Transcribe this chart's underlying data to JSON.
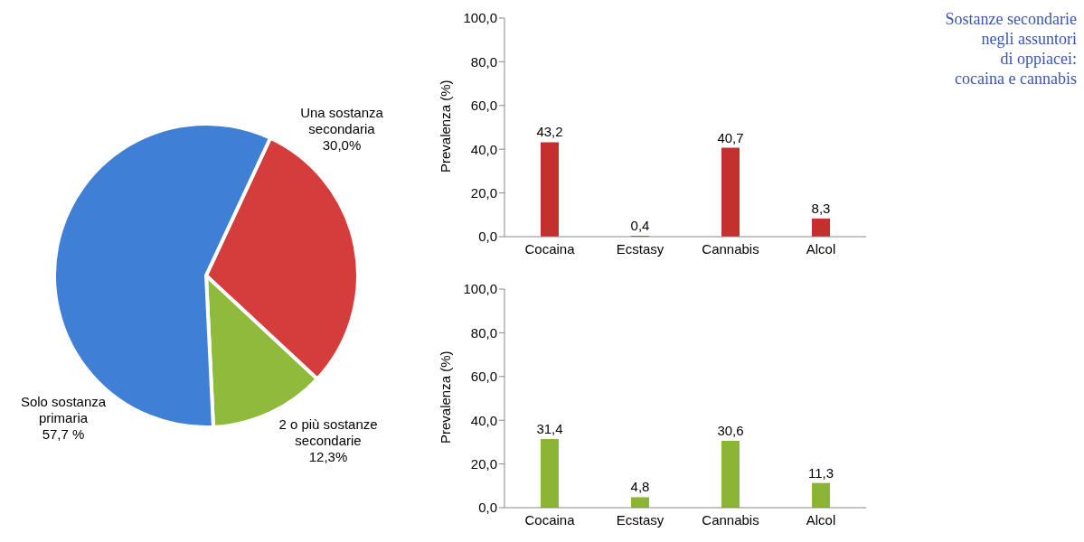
{
  "chart_data": [
    {
      "type": "pie",
      "categories": [
        "Una sostanza secondaria",
        "2 o più sostanze secondarie",
        "Solo sostanza primaria"
      ],
      "values": [
        30.0,
        12.3,
        57.7
      ],
      "colors": [
        "#d43d3b",
        "#8fba3c",
        "#3f80d6"
      ],
      "value_labels": [
        "30,0%",
        "12,3%",
        "57,7 %"
      ],
      "legend": false
    },
    {
      "type": "bar",
      "categories": [
        "Cocaina",
        "Ecstasy",
        "Cannabis",
        "Alcol"
      ],
      "values": [
        43.2,
        0.4,
        40.7,
        8.3
      ],
      "color": "#c4302e",
      "value_labels": [
        "43,2",
        "0,4",
        "40,7",
        "8,3"
      ],
      "ylabel": "Prevalenza (%)",
      "ylim": [
        0,
        100
      ],
      "yticks": [
        {
          "value": 0,
          "label": "0,0"
        },
        {
          "value": 20,
          "label": "20,0"
        },
        {
          "value": 40,
          "label": "40,0"
        },
        {
          "value": 60,
          "label": "60,0"
        },
        {
          "value": 80,
          "label": "80,0"
        },
        {
          "value": 100,
          "label": "100,0"
        }
      ],
      "grid": false,
      "legend": false
    },
    {
      "type": "bar",
      "categories": [
        "Cocaina",
        "Ecstasy",
        "Cannabis",
        "Alcol"
      ],
      "values": [
        31.4,
        4.8,
        30.6,
        11.3
      ],
      "color": "#8db535",
      "value_labels": [
        "31,4",
        "4,8",
        "30,6",
        "11,3"
      ],
      "ylabel": "Prevalenza (%)",
      "ylim": [
        0,
        100
      ],
      "yticks": [
        {
          "value": 0,
          "label": "0,0"
        },
        {
          "value": 20,
          "label": "20,0"
        },
        {
          "value": 40,
          "label": "40,0"
        },
        {
          "value": 60,
          "label": "60,0"
        },
        {
          "value": 80,
          "label": "80,0"
        },
        {
          "value": 100,
          "label": "100,0"
        }
      ],
      "grid": false,
      "legend": false
    },
    {
      "type": "other",
      "title": "Sostanze secondarie\nnegli assuntori\ndi oppiacei:\ncocaina e cannabis"
    }
  ]
}
